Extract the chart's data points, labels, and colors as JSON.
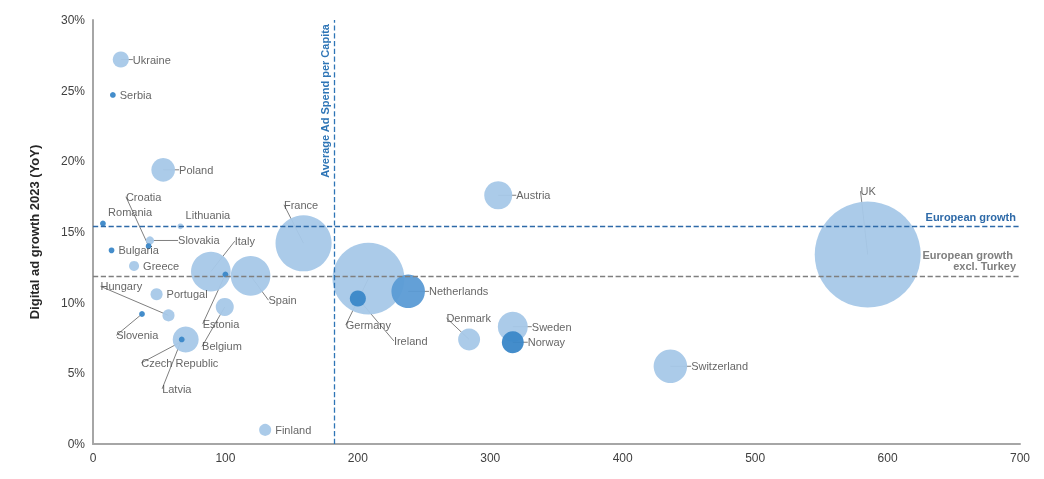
{
  "chart_data": {
    "type": "bubble",
    "ylabel": "Digital ad growth 2023 (YoY)",
    "x": [
      21,
      15,
      53,
      7.5,
      66,
      14,
      43,
      42,
      31,
      89,
      100,
      119,
      159,
      48,
      37,
      57,
      99.5,
      70,
      67,
      130,
      208,
      200,
      238,
      306,
      284,
      317,
      317,
      436,
      585
    ],
    "values": [
      27.2,
      24.7,
      19.4,
      15.6,
      15.4,
      13.7,
      14.4,
      14.0,
      12.6,
      12.2,
      12.0,
      11.9,
      14.2,
      10.6,
      9.2,
      9.1,
      9.7,
      7.4,
      7.4,
      1.0,
      11.7,
      10.3,
      10.8,
      17.6,
      7.4,
      8.3,
      7.2,
      5.5,
      13.4
    ],
    "sizes": [
      0.023,
      0.003,
      0.05,
      0.003,
      0.003,
      0.003,
      0.006,
      0.003,
      0.009,
      0.14,
      0.003,
      0.14,
      0.28,
      0.013,
      0.003,
      0.013,
      0.029,
      0.06,
      0.003,
      0.013,
      0.46,
      0.023,
      0.1,
      0.07,
      0.043,
      0.08,
      0.043,
      0.1,
      1
    ],
    "colors": [
      "#a6c8e8",
      "#3a87c8",
      "#a6c8e8",
      "#3a87c8",
      "#a6c8e8",
      "#3a87c8",
      "#a6c8e8",
      "#3a87c8",
      "#a6c8e8",
      "#a6c8e8",
      "#3a87c8",
      "#a6c8e8",
      "#a6c8e8",
      "#a6c8e8",
      "#3a87c8",
      "#a6c8e8",
      "#a6c8e8",
      "#a6c8e8",
      "#3a87c8",
      "#a6c8e8",
      "#a6c8e8",
      "#3a87c8",
      "#5b9bd5",
      "#a6c8e8",
      "#a6c8e8",
      "#a6c8e8",
      "#3a87c8",
      "#a6c8e8",
      "#a6c8e8"
    ],
    "annotations": [
      {
        "text": "Ukraine",
        "x": 21,
        "y": 27.2
      },
      {
        "text": "Serbia",
        "x": 15,
        "y": 24.7
      },
      {
        "text": "Poland",
        "x": 53,
        "y": 19.4
      },
      {
        "text": "Romania",
        "x": 7.5,
        "y": 15.6
      },
      {
        "text": "Lithuania",
        "x": 66,
        "y": 15.4
      },
      {
        "text": "Bulgaria",
        "x": 14,
        "y": 13.7
      },
      {
        "text": "Slovakia",
        "x": 43,
        "y": 14.4
      },
      {
        "text": "Croatia",
        "x": 42,
        "y": 14.0
      },
      {
        "text": "Greece",
        "x": 31,
        "y": 12.6
      },
      {
        "text": "Italy",
        "x": 89,
        "y": 12.2
      },
      {
        "text": "Estonia",
        "x": 100,
        "y": 12.0
      },
      {
        "text": "Spain",
        "x": 119,
        "y": 11.9
      },
      {
        "text": "France",
        "x": 159,
        "y": 14.2
      },
      {
        "text": "Portugal",
        "x": 48,
        "y": 10.6
      },
      {
        "text": "Slovenia",
        "x": 37,
        "y": 9.2
      },
      {
        "text": "Hungary",
        "x": 57,
        "y": 9.1
      },
      {
        "text": "Belgium",
        "x": 99.5,
        "y": 9.7
      },
      {
        "text": "Czech Republic",
        "x": 70,
        "y": 7.4
      },
      {
        "text": "Latvia",
        "x": 67,
        "y": 7.4
      },
      {
        "text": "Finland",
        "x": 130,
        "y": 1.0
      },
      {
        "text": "Germany",
        "x": 208,
        "y": 11.7
      },
      {
        "text": "Ireland",
        "x": 200,
        "y": 10.3
      },
      {
        "text": "Netherlands",
        "x": 238,
        "y": 10.8
      },
      {
        "text": "Austria",
        "x": 306,
        "y": 17.6
      },
      {
        "text": "Denmark",
        "x": 284,
        "y": 7.4
      },
      {
        "text": "Sweden",
        "x": 317,
        "y": 8.3
      },
      {
        "text": "Norway",
        "x": 317,
        "y": 7.2
      },
      {
        "text": "Switzerland",
        "x": 436,
        "y": 5.5
      },
      {
        "text": "UK",
        "x": 585,
        "y": 13.4
      }
    ],
    "ref_lines": [
      {
        "axis": "y",
        "value": 15.4,
        "label": "European growth",
        "color": "#2e6aa8",
        "line_style": "dashed"
      },
      {
        "axis": "y",
        "value": 11.9,
        "label": "European growth excl. Turkey",
        "color": "#7f7f7f",
        "line_style": "dashed"
      },
      {
        "axis": "x",
        "value": 182,
        "label": "Average Ad Spend per Capita",
        "color": "#2e75b6",
        "line_style": "dashed"
      }
    ],
    "xlim": [
      0,
      700
    ],
    "xticks": [
      0,
      100,
      200,
      300,
      400,
      500,
      600,
      700
    ],
    "ylim": [
      0,
      30
    ],
    "yticks": [
      {
        "value": 0,
        "label": "0%"
      },
      {
        "value": 5,
        "label": "5%"
      },
      {
        "value": 10,
        "label": "10%"
      },
      {
        "value": 15,
        "label": "15%"
      },
      {
        "value": 20,
        "label": "20%"
      },
      {
        "value": 25,
        "label": "25%"
      },
      {
        "value": 30,
        "label": "30%"
      }
    ],
    "grid": false
  }
}
